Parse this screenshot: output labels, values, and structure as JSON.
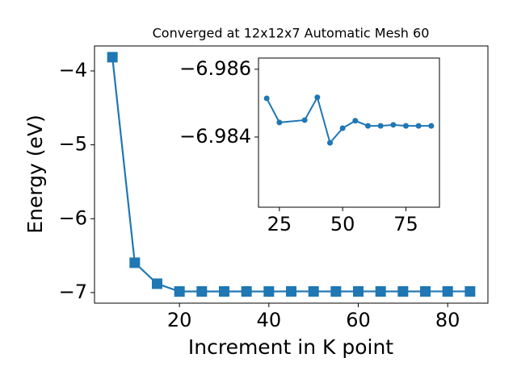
{
  "chart_data": [
    {
      "type": "line",
      "title": "Converged at 12x12x7 Automatic Mesh 60",
      "x_label": "Increment in K point",
      "y_label": "Energy (eV)",
      "x": [
        5,
        10,
        15,
        20,
        25,
        30,
        35,
        40,
        45,
        50,
        55,
        60,
        65,
        70,
        75,
        80,
        85
      ],
      "series": [
        {
          "color": "#1f77b4",
          "marker": "square",
          "values": [
            -3.814,
            -6.596,
            -6.88,
            -6.9851,
            -6.9844,
            -6.9844,
            -6.9845,
            -6.9852,
            -6.9838,
            -6.9843,
            -6.9845,
            -6.9843,
            -6.9843,
            -6.9844,
            -6.9843,
            -6.9843,
            -6.9843
          ]
        }
      ],
      "xlim": [
        1,
        89
      ],
      "ylim": [
        -7.143,
        -3.662
      ],
      "xticks": [
        20,
        40,
        60,
        80
      ],
      "yticks": [
        {
          "value": -7,
          "label": "−7"
        },
        {
          "value": -6,
          "label": "−6"
        },
        {
          "value": -5,
          "label": "−5"
        },
        {
          "value": -4,
          "label": "−4"
        }
      ]
    },
    {
      "type": "line",
      "x": [
        20,
        25,
        35,
        40,
        45,
        50,
        55,
        60,
        65,
        70,
        75,
        80,
        85
      ],
      "series": [
        {
          "color": "#1f77b4",
          "marker": "circle",
          "values": [
            -6.98514,
            -6.98443,
            -6.9845,
            -6.98517,
            -6.98383,
            -6.98426,
            -6.98448,
            -6.98433,
            -6.98433,
            -6.98436,
            -6.98433,
            -6.98433,
            -6.98433
          ]
        }
      ],
      "xlim": [
        16.75,
        88.25
      ],
      "ylim": [
        -6.98193,
        -6.98633
      ],
      "xticks": [
        25,
        50,
        75
      ],
      "yticks": [
        {
          "value": -6.984,
          "label": "−6.984"
        },
        {
          "value": -6.986,
          "label": "−6.986"
        }
      ]
    }
  ]
}
